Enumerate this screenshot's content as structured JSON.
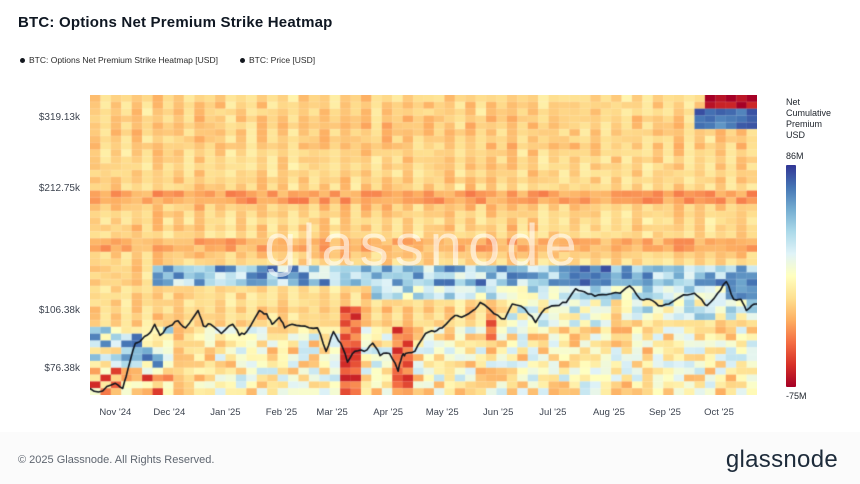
{
  "header": {
    "title": "BTC: Options Net Premium Strike Heatmap"
  },
  "legend": {
    "items": [
      {
        "label": "BTC: Options Net Premium Strike Heatmap [USD]",
        "dot_color": "#14181f"
      },
      {
        "label": "BTC: Price [USD]",
        "dot_color": "#14181f"
      }
    ]
  },
  "watermark": {
    "text": "glassnode"
  },
  "footer": {
    "copyright": "© 2025 Glassnode. All Rights Reserved.",
    "brand": "glassnode"
  },
  "chart_data": {
    "type": "heatmap",
    "title": "BTC: Options Net Premium Strike Heatmap",
    "x_ticks": [
      {
        "label": "Nov '24",
        "t": 0.038
      },
      {
        "label": "Dec '24",
        "t": 0.119
      },
      {
        "label": "Jan '25",
        "t": 0.203
      },
      {
        "label": "Feb '25",
        "t": 0.287
      },
      {
        "label": "Mar '25",
        "t": 0.363
      },
      {
        "label": "Apr '25",
        "t": 0.447
      },
      {
        "label": "May '25",
        "t": 0.528
      },
      {
        "label": "Jun '25",
        "t": 0.612
      },
      {
        "label": "Jul '25",
        "t": 0.694
      },
      {
        "label": "Aug '25",
        "t": 0.778
      },
      {
        "label": "Sep '25",
        "t": 0.862
      },
      {
        "label": "Oct '25",
        "t": 0.943
      }
    ],
    "y_ticks": [
      {
        "label": "$76.38k",
        "value": 76.38
      },
      {
        "label": "$106.38k",
        "value": 106.38
      },
      {
        "label": "$212.75k",
        "value": 212.75
      },
      {
        "label": "$319.13k",
        "value": 319.13
      }
    ],
    "y_scale": "log",
    "y_domain_k": [
      65.5,
      362
    ],
    "grid_on": false,
    "legend_position": "top-left",
    "colorbar": {
      "label_lines": [
        "Net",
        "Cumulative",
        "Premium",
        "USD"
      ],
      "max_label": "86M",
      "min_label": "-75M",
      "min": -75,
      "max": 86,
      "palette": [
        "#a50026",
        "#d73027",
        "#f46d43",
        "#fdae61",
        "#fee090",
        "#ffffbf",
        "#e0f3f8",
        "#abd9e9",
        "#74add1",
        "#4575b4",
        "#313695"
      ]
    },
    "grid": {
      "cols": 64,
      "rows": 44
    },
    "base_field": {
      "value": -13,
      "noise_amp": 7
    },
    "features": [
      {
        "t0": 0.0,
        "t1": 1.0,
        "k0": 193,
        "k1": 212,
        "val": -30,
        "jitter": 10
      },
      {
        "t0": 0.0,
        "t1": 1.0,
        "k0": 148,
        "k1": 160,
        "val": -26,
        "jitter": 10
      },
      {
        "t0": 0.15,
        "t1": 1.0,
        "k0": 66,
        "k1": 96,
        "val": 2,
        "jitter": 30
      },
      {
        "t0": 0.0,
        "t1": 0.13,
        "k0": 78,
        "k1": 96,
        "val": 28,
        "jitter": 45
      },
      {
        "t0": 0.0,
        "t1": 0.13,
        "k0": 66,
        "k1": 78,
        "val": -22,
        "jitter": 40
      },
      {
        "t0": 0.1,
        "t1": 1.0,
        "k0": 124,
        "k1": 136,
        "val": 46,
        "jitter": 30
      },
      {
        "t0": 0.42,
        "t1": 1.0,
        "k0": 113,
        "k1": 123,
        "val": 26,
        "jitter": 25
      },
      {
        "t0": 0.63,
        "t1": 0.78,
        "k0": 98,
        "k1": 112,
        "val": 16,
        "jitter": 25
      },
      {
        "t0": 0.8,
        "t1": 1.0,
        "k0": 100,
        "k1": 114,
        "val": 20,
        "jitter": 28
      },
      {
        "t0": 0.7,
        "t1": 0.78,
        "k0": 124,
        "k1": 136,
        "val": 68,
        "jitter": 12
      },
      {
        "t0": 0.955,
        "t1": 1.0,
        "k0": 115,
        "k1": 132,
        "val": 62,
        "jitter": 12
      },
      {
        "t0": 0.37,
        "t1": 0.405,
        "k0": 66,
        "k1": 110,
        "val": -48,
        "jitter": 18
      },
      {
        "t0": 0.452,
        "t1": 0.478,
        "k0": 66,
        "k1": 98,
        "val": -45,
        "jitter": 18
      },
      {
        "t0": 0.59,
        "t1": 0.615,
        "k0": 88,
        "k1": 108,
        "val": -40,
        "jitter": 15
      },
      {
        "t0": 0.915,
        "t1": 1.0,
        "k0": 332,
        "k1": 362,
        "val": -70,
        "jitter": 8
      },
      {
        "t0": 0.9,
        "t1": 1.0,
        "k0": 298,
        "k1": 330,
        "val": 70,
        "jitter": 10
      }
    ],
    "price_series": {
      "name": "BTC: Price [USD]",
      "color": "#10151e",
      "unit": "USD thousands",
      "points": [
        [
          0.0,
          68
        ],
        [
          0.019,
          67
        ],
        [
          0.038,
          70
        ],
        [
          0.049,
          68
        ],
        [
          0.057,
          76
        ],
        [
          0.068,
          88
        ],
        [
          0.078,
          90
        ],
        [
          0.089,
          93
        ],
        [
          0.097,
          98
        ],
        [
          0.105,
          92
        ],
        [
          0.119,
          97
        ],
        [
          0.132,
          100
        ],
        [
          0.143,
          96
        ],
        [
          0.162,
          106
        ],
        [
          0.17,
          97
        ],
        [
          0.181,
          98
        ],
        [
          0.197,
          93
        ],
        [
          0.214,
          98
        ],
        [
          0.224,
          92
        ],
        [
          0.235,
          94
        ],
        [
          0.254,
          106
        ],
        [
          0.265,
          104
        ],
        [
          0.273,
          98
        ],
        [
          0.284,
          102
        ],
        [
          0.292,
          96
        ],
        [
          0.303,
          98
        ],
        [
          0.322,
          97
        ],
        [
          0.341,
          96
        ],
        [
          0.354,
          84
        ],
        [
          0.365,
          94
        ],
        [
          0.376,
          88
        ],
        [
          0.386,
          79
        ],
        [
          0.397,
          84
        ],
        [
          0.411,
          84
        ],
        [
          0.424,
          88
        ],
        [
          0.435,
          82
        ],
        [
          0.449,
          83
        ],
        [
          0.462,
          75
        ],
        [
          0.468,
          82
        ],
        [
          0.473,
          83
        ],
        [
          0.487,
          84
        ],
        [
          0.503,
          93
        ],
        [
          0.517,
          94
        ],
        [
          0.528,
          96
        ],
        [
          0.547,
          103
        ],
        [
          0.557,
          102
        ],
        [
          0.574,
          106
        ],
        [
          0.585,
          111
        ],
        [
          0.606,
          104
        ],
        [
          0.622,
          101
        ],
        [
          0.633,
          110
        ],
        [
          0.652,
          107
        ],
        [
          0.668,
          99
        ],
        [
          0.682,
          107
        ],
        [
          0.698,
          109
        ],
        [
          0.714,
          111
        ],
        [
          0.728,
          120
        ],
        [
          0.741,
          118
        ],
        [
          0.757,
          115
        ],
        [
          0.774,
          116
        ],
        [
          0.795,
          117
        ],
        [
          0.809,
          122
        ],
        [
          0.825,
          113
        ],
        [
          0.839,
          113
        ],
        [
          0.852,
          109
        ],
        [
          0.868,
          110
        ],
        [
          0.89,
          116
        ],
        [
          0.906,
          117
        ],
        [
          0.917,
          113
        ],
        [
          0.925,
          109
        ],
        [
          0.941,
          117
        ],
        [
          0.954,
          125
        ],
        [
          0.965,
          113
        ],
        [
          0.976,
          113
        ],
        [
          0.984,
          106
        ],
        [
          0.992,
          109
        ],
        [
          1.0,
          110
        ]
      ]
    }
  }
}
